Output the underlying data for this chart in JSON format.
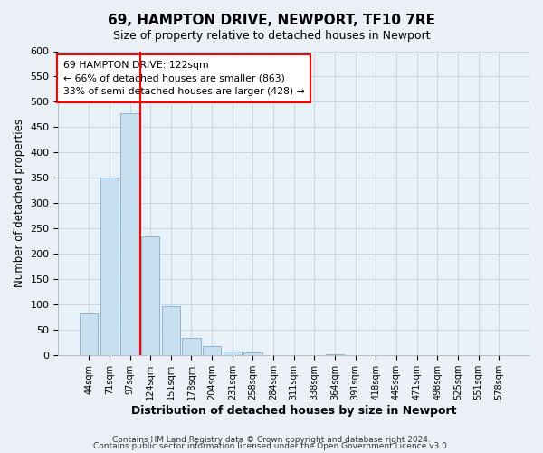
{
  "title": "69, HAMPTON DRIVE, NEWPORT, TF10 7RE",
  "subtitle": "Size of property relative to detached houses in Newport",
  "xlabel": "Distribution of detached houses by size in Newport",
  "ylabel": "Number of detached properties",
  "bar_color": "#c8dff0",
  "bar_edge_color": "#8ab4d4",
  "bin_labels": [
    "44sqm",
    "71sqm",
    "97sqm",
    "124sqm",
    "151sqm",
    "178sqm",
    "204sqm",
    "231sqm",
    "258sqm",
    "284sqm",
    "311sqm",
    "338sqm",
    "364sqm",
    "391sqm",
    "418sqm",
    "445sqm",
    "471sqm",
    "498sqm",
    "525sqm",
    "551sqm",
    "578sqm"
  ],
  "bar_heights": [
    83,
    350,
    478,
    235,
    97,
    35,
    18,
    8,
    5,
    0,
    0,
    0,
    2,
    0,
    0,
    1,
    0,
    0,
    0,
    0,
    1
  ],
  "red_line_index": 2.5,
  "annotation_title": "69 HAMPTON DRIVE: 122sqm",
  "annotation_line1": "← 66% of detached houses are smaller (863)",
  "annotation_line2": "33% of semi-detached houses are larger (428) →",
  "ylim": [
    0,
    600
  ],
  "yticks": [
    0,
    50,
    100,
    150,
    200,
    250,
    300,
    350,
    400,
    450,
    500,
    550,
    600
  ],
  "footer1": "Contains HM Land Registry data © Crown copyright and database right 2024.",
  "footer2": "Contains public sector information licensed under the Open Government Licence v3.0.",
  "background_color": "#eaf0f6",
  "plot_bg_color": "#e8f0f8",
  "grid_color": "#c8d4e0"
}
